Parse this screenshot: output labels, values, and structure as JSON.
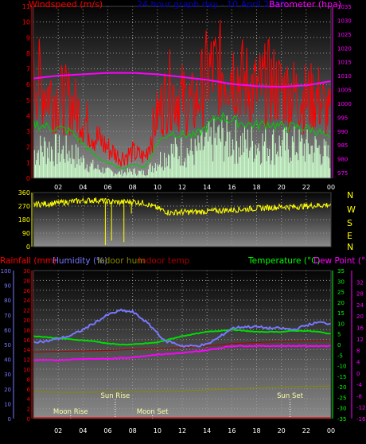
{
  "header": {
    "windspeed_label": "Windspeed (m/s)",
    "graph_title": "24 hour graph day - 10 April 2015",
    "barometer_label": "Barometer (hpa)"
  },
  "compass": [
    "N",
    "W",
    "S",
    "E",
    "N"
  ],
  "bottom_header": {
    "rainfall": "Rainfall (mm)",
    "humidity": "Humidity (%)",
    "indoor_hum": "Indoor hum",
    "indoor_temp": "Indoor temp",
    "temperature": "Temperature (°C)",
    "dew_point": "Dew Point (°C)"
  },
  "events": [
    {
      "label": "Moon Rise",
      "time": 3.0,
      "row": "low"
    },
    {
      "label": "Sun Rise",
      "time": 6.6,
      "row": "high"
    },
    {
      "label": "Moon Set",
      "time": 9.6,
      "row": "low"
    },
    {
      "label": "Sun Set",
      "time": 20.7,
      "row": "high"
    }
  ],
  "colors": {
    "wind": "#ff0000",
    "wind_avg": "#00cc00",
    "gust_bars": "#ccffcc",
    "barometer": "#ff00ff",
    "direction": "#ffff00",
    "humidity": "#7777ff",
    "temperature": "#00dd00",
    "dew_point": "#ff00ff",
    "indoor_temp": "#aa0000",
    "indoor_hum": "#888800",
    "rain": "#ff0000",
    "left_axis": "#ff0000",
    "dir_axis": "#ffff00",
    "hum_axis": "#7777ff",
    "temp_axis": "#00ff00",
    "dew_axis": "#ff00ff"
  },
  "chart_data": [
    {
      "type": "line",
      "title": "24 hour graph day - 10 April 2015",
      "xlabel": "",
      "ylabel": "Windspeed (m/s)",
      "y2label": "Barometer (hpa)",
      "x_ticks": [
        "02",
        "04",
        "06",
        "08",
        "10",
        "12",
        "14",
        "16",
        "18",
        "20",
        "22",
        "00"
      ],
      "ylim": [
        0,
        11
      ],
      "y_ticks": [
        0,
        1,
        2,
        3,
        4,
        5,
        6,
        7,
        8,
        9,
        10,
        11
      ],
      "y2lim": [
        973,
        1035
      ],
      "y2_ticks": [
        975,
        980,
        985,
        990,
        995,
        1000,
        1005,
        1010,
        1015,
        1020,
        1025,
        1030,
        1035
      ],
      "grid": true,
      "series": [
        {
          "name": "Windspeed (m/s)",
          "x": [
            0,
            1,
            2,
            3,
            4,
            5,
            6,
            7,
            8,
            9,
            10,
            11,
            12,
            13,
            14,
            15,
            16,
            17,
            18,
            19,
            20,
            21,
            22,
            23,
            24
          ],
          "values": [
            6.5,
            5.5,
            5.0,
            4.8,
            3.8,
            2.6,
            1.9,
            1.3,
            1.6,
            1.3,
            4.0,
            5.5,
            5.0,
            4.5,
            6.5,
            6.8,
            6.8,
            6.0,
            5.5,
            6.0,
            5.5,
            5.3,
            5.0,
            5.0,
            3.8
          ]
        },
        {
          "name": "",
          "x": [
            0,
            1,
            2,
            3,
            4,
            5,
            6,
            7,
            8,
            9,
            10,
            11,
            12,
            13,
            14,
            15,
            16,
            17,
            18,
            19,
            20,
            21,
            22,
            23,
            24
          ],
          "values": [
            3.5,
            3.3,
            3.2,
            3.0,
            2.2,
            1.4,
            1.0,
            0.6,
            0.9,
            0.7,
            2.3,
            2.9,
            2.8,
            2.7,
            3.3,
            4.0,
            3.7,
            3.5,
            3.4,
            3.5,
            3.3,
            3.3,
            3.2,
            3.0,
            2.4
          ]
        },
        {
          "name": "",
          "x": [
            0,
            1,
            2,
            3,
            4,
            5,
            6,
            7,
            8,
            9,
            10,
            11,
            12,
            13,
            14,
            15,
            16,
            17,
            18,
            19,
            20,
            21,
            22,
            23,
            24
          ],
          "values": [
            1.5,
            1.8,
            1.6,
            1.5,
            1.0,
            0.6,
            0.4,
            0.3,
            0.4,
            0.3,
            1.0,
            1.5,
            1.6,
            1.5,
            2.0,
            2.3,
            2.2,
            2.0,
            2.0,
            2.0,
            1.9,
            1.9,
            1.8,
            1.7,
            1.2
          ]
        },
        {
          "name": "Barometer (hpa)",
          "x": [
            0,
            2,
            4,
            6,
            8,
            10,
            12,
            14,
            16,
            18,
            20,
            22,
            24
          ],
          "values": [
            1009,
            1010,
            1010.5,
            1011,
            1011,
            1010.5,
            1009.5,
            1008.5,
            1007,
            1006.2,
            1006,
            1006.5,
            1008
          ]
        }
      ]
    },
    {
      "type": "scatter",
      "title": "",
      "xlabel": "",
      "ylabel": "",
      "ylim": [
        0,
        360
      ],
      "y_ticks": [
        0,
        90,
        180,
        270,
        360
      ],
      "grid": true,
      "series": [
        {
          "name": "",
          "x": [
            0,
            1,
            2,
            3,
            4,
            5,
            6,
            7,
            8,
            9,
            10,
            11,
            12,
            13,
            14,
            15,
            16,
            17,
            18,
            19,
            20,
            21,
            22,
            23,
            24
          ],
          "values": [
            280,
            285,
            290,
            300,
            305,
            310,
            300,
            295,
            300,
            290,
            255,
            225,
            230,
            230,
            235,
            240,
            245,
            250,
            255,
            260,
            265,
            265,
            270,
            275,
            280
          ]
        }
      ]
    },
    {
      "type": "line",
      "title": "",
      "xlabel": "",
      "ylabel": "Rainfall (mm)",
      "y2label": "Temperature (°C)",
      "x_ticks": [
        "02",
        "04",
        "06",
        "08",
        "10",
        "12",
        "14",
        "16",
        "18",
        "20",
        "22",
        "00"
      ],
      "ylim": [
        0,
        30
      ],
      "y_ticks": [
        0,
        2,
        4,
        6,
        8,
        10,
        12,
        14,
        16,
        18,
        20,
        22,
        24,
        26,
        28,
        30
      ],
      "humidity_lim": [
        0,
        100
      ],
      "humidity_ticks": [
        0,
        10,
        20,
        30,
        40,
        50,
        60,
        70,
        80,
        90,
        100
      ],
      "y2lim": [
        -35,
        35
      ],
      "y2_ticks": [
        -35,
        -30,
        -25,
        -20,
        -15,
        -10,
        -5,
        0,
        5,
        10,
        15,
        20,
        25,
        30,
        35
      ],
      "dew_lim": [
        -16,
        36
      ],
      "dew_ticks": [
        -16,
        -12,
        -8,
        -4,
        0,
        4,
        8,
        12,
        16,
        20,
        24,
        28,
        32
      ],
      "grid": true,
      "series": [
        {
          "name": "Humidity (%)",
          "x": [
            0,
            1,
            2,
            3,
            4,
            5,
            6,
            7,
            8,
            9,
            10,
            10.6,
            11,
            12,
            13,
            14,
            15,
            16,
            17,
            18,
            19,
            20,
            21,
            22,
            23,
            24
          ],
          "values": [
            52,
            52,
            54,
            56,
            60,
            65,
            70,
            73,
            72,
            66,
            58,
            52,
            52,
            49,
            49,
            50,
            55,
            61,
            62,
            62,
            61,
            61,
            60,
            63,
            65,
            64
          ]
        },
        {
          "name": "Temperature (°C)",
          "x": [
            0,
            1,
            2,
            3,
            4,
            5,
            6,
            7,
            8,
            9,
            10,
            11,
            12,
            13,
            14,
            15,
            16,
            17,
            18,
            19,
            20,
            21,
            22,
            23,
            24
          ],
          "values": [
            4,
            3.5,
            3,
            2.5,
            2,
            1.5,
            0.5,
            0,
            0,
            0.5,
            1,
            2.5,
            4,
            5,
            6,
            6.5,
            7,
            6.5,
            6,
            6,
            6,
            6.5,
            6.5,
            6,
            5
          ]
        },
        {
          "name": "Dew Point (°C)",
          "x": [
            0,
            2,
            4,
            6,
            8,
            10,
            12,
            14,
            16,
            18,
            20,
            22,
            24
          ],
          "values": [
            4.5,
            4.5,
            5,
            5,
            5.5,
            6.5,
            7,
            8,
            9.5,
            9.5,
            9.5,
            9.5,
            9.5
          ]
        },
        {
          "name": "Indoor temp",
          "x": [
            0,
            2,
            4,
            6,
            8,
            10,
            12,
            14,
            16,
            18,
            20,
            22,
            24
          ],
          "values": [
            13.5,
            13.6,
            13.7,
            13.8,
            14,
            14.2,
            14.4,
            14.7,
            15.2,
            15.4,
            15.6,
            15.7,
            15.8
          ]
        },
        {
          "name": "Indoor hum",
          "x": [
            0,
            2,
            4,
            6,
            8,
            10,
            12,
            14,
            16,
            18,
            20,
            22,
            24
          ],
          "values": [
            5.5,
            5.3,
            5.3,
            5.4,
            5.4,
            5.5,
            5.6,
            5.8,
            6.0,
            6.2,
            6.4,
            6.5,
            6.6
          ]
        },
        {
          "name": "Rainfall (mm)",
          "x": [
            0,
            24
          ],
          "values": [
            0.1,
            0.1
          ]
        }
      ]
    }
  ]
}
